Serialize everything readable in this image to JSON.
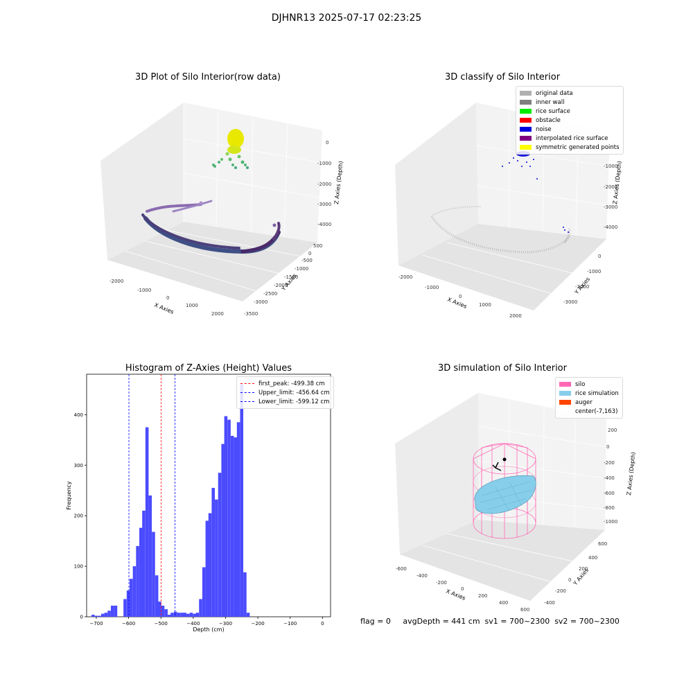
{
  "figure": {
    "suptitle": "DJHNR13 2025-07-17 02:23:25",
    "footer": "flag = 0     avgDepth = 441 cm  sv1 = 700~2300  sv2 = 700~2300"
  },
  "panels": {
    "raw": {
      "title": "3D Plot of Silo Interior(row data)",
      "xlabel": "X Axies",
      "ylabel": "Y Axies",
      "zlabel": "Z Axies (Depth)",
      "xticks": [
        "-2000",
        "-1000",
        "0",
        "1000",
        "2000"
      ],
      "yticks": [
        "500",
        "0",
        "-500",
        "-1000",
        "-1500",
        "-2000",
        "-2500",
        "-3000",
        "-3500"
      ],
      "zticks": [
        "0",
        "-1000",
        "-2000",
        "-3000",
        "-4000"
      ]
    },
    "classify": {
      "title": "3D classify of Silo Interior",
      "xlabel": "X Axies",
      "ylabel": "Y Axies",
      "zlabel": "Z Axies (Depth)",
      "xticks": [
        "-2000",
        "-1000",
        "0",
        "1000",
        "2000"
      ],
      "yticks": [
        "0",
        "-1000",
        "-2000",
        "-3000"
      ],
      "zticks": [
        "0",
        "-1000",
        "-2000",
        "-3000",
        "-4000"
      ],
      "legend": [
        {
          "label": "original data",
          "color": "#b0b0b0"
        },
        {
          "label": "inner wall",
          "color": "#808080"
        },
        {
          "label": "rice surface",
          "color": "#00ee00"
        },
        {
          "label": "obstacle",
          "color": "#ff0000"
        },
        {
          "label": "noise",
          "color": "#0000dd"
        },
        {
          "label": "interpolated rice surface",
          "color": "#800080"
        },
        {
          "label": "symmetric generated points",
          "color": "#ffff00"
        }
      ]
    },
    "simulation": {
      "title": "3D simulation of Silo Interior",
      "xlabel": "X Axies",
      "ylabel": "Y Axies",
      "zlabel": "Z Axies (Depth)",
      "xticks": [
        "-600",
        "-400",
        "-200",
        "0",
        "200",
        "400",
        "600"
      ],
      "yticks": [
        "600",
        "400",
        "200",
        "0",
        "-200",
        "-400"
      ],
      "zticks": [
        "200",
        "0",
        "-200",
        "-400",
        "-600",
        "-800",
        "-1000"
      ],
      "legend": [
        {
          "label": "silo",
          "color": "#ff69b4"
        },
        {
          "label": "rice simulation",
          "color": "#87ceeb"
        },
        {
          "label": "auger",
          "color": "#ff4500"
        },
        {
          "label": "center(-7,163)",
          "color": ""
        }
      ]
    }
  },
  "chart_data": {
    "type": "bar",
    "title": "Histogram of Z-Axies (Height) Values",
    "xlabel": "Depth (cm)",
    "ylabel": "Frequency",
    "xlim": [
      -730,
      25
    ],
    "ylim": [
      0,
      480
    ],
    "xticks": [
      -700,
      -600,
      -500,
      -400,
      -300,
      -200,
      -100,
      0
    ],
    "yticks": [
      0,
      100,
      200,
      300,
      400
    ],
    "bin_width": 9.8,
    "bin_starts": [
      -715,
      -705,
      -695,
      -685,
      -675,
      -665,
      -655,
      -645,
      -636,
      -626,
      -616,
      -606,
      -597,
      -587,
      -577,
      -567,
      -558,
      -548,
      -538,
      -528,
      -518,
      -509,
      -499,
      -489,
      -479,
      -470,
      -460,
      -450,
      -440,
      -431,
      -421,
      -411,
      -401,
      -392,
      -382,
      -372,
      -362,
      -353,
      -343,
      -333,
      -323,
      -313,
      -304,
      -294,
      -284,
      -274,
      -265,
      -255,
      -245,
      -235,
      -226,
      -216,
      -206,
      -196,
      -187,
      -177,
      -167,
      -157,
      -148,
      -138,
      -128,
      -118,
      -108,
      -99,
      -89,
      -79,
      -69,
      -60,
      -50,
      -40,
      -30,
      -21,
      -11
    ],
    "values": [
      4,
      2,
      2,
      6,
      8,
      12,
      22,
      22,
      0,
      0,
      35,
      52,
      75,
      100,
      140,
      176,
      210,
      375,
      240,
      168,
      82,
      30,
      22,
      15,
      4,
      8,
      10,
      8,
      8,
      8,
      6,
      8,
      6,
      8,
      35,
      98,
      190,
      205,
      255,
      232,
      285,
      342,
      397,
      390,
      358,
      355,
      385,
      460,
      88,
      8,
      0,
      0,
      0,
      0,
      0,
      0,
      0,
      0,
      0,
      0,
      0,
      0,
      0,
      0,
      0,
      0,
      0,
      0,
      0,
      0,
      0,
      0,
      0
    ],
    "bar_color": "#4b4bff",
    "vlines": [
      {
        "label": "first_peak: -499.38 cm",
        "x": -499.38,
        "color": "#ff0000"
      },
      {
        "label": "Upper_limit: -456.64 cm",
        "x": -456.64,
        "color": "#0000ff"
      },
      {
        "label": "Lower_limit: -599.12 cm",
        "x": -599.12,
        "color": "#0000ff"
      }
    ],
    "legend_position": "top-right"
  }
}
